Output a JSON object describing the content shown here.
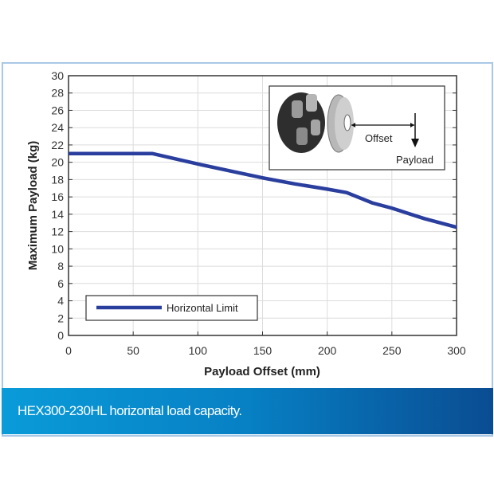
{
  "chart_data": {
    "type": "line",
    "title": "",
    "xlabel": "Payload Offset (mm)",
    "ylabel": "Maximum Payload (kg)",
    "xlim": [
      0,
      300
    ],
    "ylim": [
      0,
      30
    ],
    "xticks": [
      0,
      50,
      100,
      150,
      200,
      250,
      300
    ],
    "yticks": [
      0,
      2,
      4,
      6,
      8,
      10,
      12,
      14,
      16,
      18,
      20,
      22,
      24,
      26,
      28,
      30
    ],
    "grid": true,
    "legend_position": "bottom-left",
    "series": [
      {
        "name": "Horizontal Limit",
        "color": "#2a3e9e",
        "x": [
          0,
          65,
          100,
          125,
          150,
          175,
          200,
          215,
          235,
          250,
          275,
          300
        ],
        "y": [
          21,
          21,
          19.8,
          19,
          18.2,
          17.5,
          16.9,
          16.5,
          15.3,
          14.7,
          13.5,
          12.5
        ]
      }
    ],
    "inset": {
      "offset_label": "Offset",
      "payload_label": "Payload"
    }
  },
  "caption": "HEX300-230HL horizontal load capacity."
}
